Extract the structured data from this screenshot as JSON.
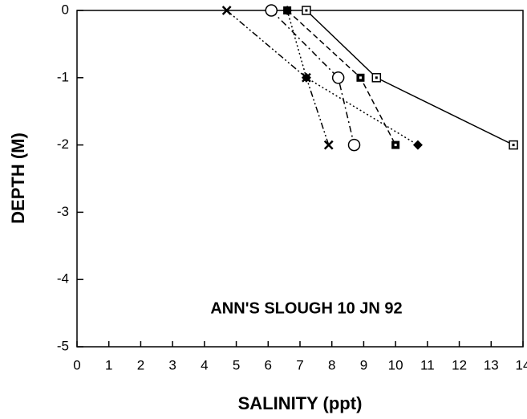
{
  "chart_data": {
    "type": "line",
    "annotation": "ANN'S SLOUGH 10 JN 92",
    "x_label": "SALINITY (ppt)",
    "y_label": "DEPTH (M)",
    "xlim": [
      0,
      14
    ],
    "xticks": [
      0,
      1,
      2,
      3,
      4,
      5,
      6,
      7,
      8,
      9,
      10,
      11,
      12,
      13,
      14
    ],
    "ylim": [
      -5,
      0
    ],
    "yticks": [
      0,
      -1,
      -2,
      -3,
      -4,
      -5
    ],
    "series": [
      {
        "color": "#000000",
        "dash": "solid",
        "marker": "square-dot",
        "x": [
          7.2,
          9.4,
          13.7
        ],
        "values": [
          0,
          -1,
          -2
        ]
      },
      {
        "color": "#000000",
        "dash": "dashed",
        "marker": "square-filled",
        "x": [
          6.6,
          8.9,
          10.0
        ],
        "values": [
          0,
          -1,
          -2
        ]
      },
      {
        "color": "#000000",
        "dash": "dashdot",
        "marker": "circle",
        "x": [
          6.1,
          8.2,
          8.7
        ],
        "values": [
          0,
          -1,
          -2
        ]
      },
      {
        "color": "#000000",
        "dash": "dotted",
        "marker": "diamond",
        "x": [
          6.6,
          7.2,
          10.7
        ],
        "values": [
          0,
          -1,
          -2
        ]
      },
      {
        "color": "#000000",
        "dash": "dashdotdot",
        "marker": "x",
        "x": [
          4.7,
          7.2,
          7.9
        ],
        "values": [
          0,
          -1,
          -2
        ]
      }
    ]
  }
}
